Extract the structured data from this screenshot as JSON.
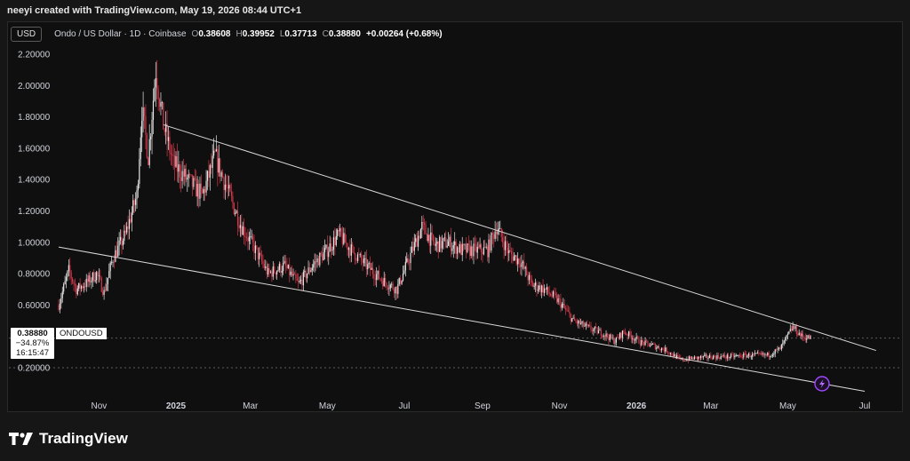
{
  "header": {
    "credit": "neeyi created with TradingView.com, May 19, 2026 08:44 UTC+1"
  },
  "legend": {
    "unit": "USD",
    "symbol_desc": "Ondo / US Dollar · 1D · Coinbase",
    "open_label": "O",
    "open": "0.38608",
    "high_label": "H",
    "high": "0.39952",
    "low_label": "L",
    "low": "0.37713",
    "close_label": "C",
    "close": "0.38880",
    "change": "+0.00264 (+0.68%)"
  },
  "price_box": {
    "price": "0.38880",
    "change_pct": "−34.87%",
    "countdown": "16:15:47",
    "symbol": "ONDOUSD"
  },
  "footer": {
    "brand": "TradingView"
  },
  "colors": {
    "up": "#e6e6e6",
    "down": "#d0394b",
    "background": "#0f0f0f",
    "grid": "#2a2a2a",
    "trendline": "#d9d9d9"
  },
  "icons": {
    "logo": "tradingview-logo-icon",
    "event": "lightning-icon"
  },
  "chart_data": {
    "type": "candlestick",
    "title": "Ondo / US Dollar · 1D · Coinbase",
    "y_ticks": [
      "2.20000",
      "2.00000",
      "1.80000",
      "1.60000",
      "1.40000",
      "1.20000",
      "1.00000",
      "0.80000",
      "0.60000",
      "0.20000"
    ],
    "ylim": [
      0.0,
      2.25
    ],
    "x_ticks": [
      "Nov",
      "2025",
      "Mar",
      "May",
      "Jul",
      "Sep",
      "Nov",
      "2026",
      "Mar",
      "May",
      "Jul"
    ],
    "x_range": [
      "2024-09-30",
      "2026-07-20"
    ],
    "grid": false,
    "path": [
      [
        "2024-09-30",
        0.6
      ],
      [
        "2024-10-08",
        0.82
      ],
      [
        "2024-10-14",
        0.7
      ],
      [
        "2024-10-22",
        0.74
      ],
      [
        "2024-10-30",
        0.8
      ],
      [
        "2024-11-05",
        0.68
      ],
      [
        "2024-11-12",
        0.9
      ],
      [
        "2024-11-22",
        1.05
      ],
      [
        "2024-12-01",
        1.3
      ],
      [
        "2024-12-05",
        1.85
      ],
      [
        "2024-12-10",
        1.55
      ],
      [
        "2024-12-16",
        2.1
      ],
      [
        "2024-12-22",
        1.75
      ],
      [
        "2024-12-30",
        1.5
      ],
      [
        "2025-01-10",
        1.4
      ],
      [
        "2025-01-22",
        1.3
      ],
      [
        "2025-02-01",
        1.55
      ],
      [
        "2025-02-10",
        1.35
      ],
      [
        "2025-02-22",
        1.1
      ],
      [
        "2025-03-05",
        0.95
      ],
      [
        "2025-03-15",
        0.8
      ],
      [
        "2025-03-28",
        0.85
      ],
      [
        "2025-04-08",
        0.73
      ],
      [
        "2025-04-20",
        0.86
      ],
      [
        "2025-05-01",
        0.95
      ],
      [
        "2025-05-10",
        1.05
      ],
      [
        "2025-05-20",
        0.95
      ],
      [
        "2025-06-01",
        0.85
      ],
      [
        "2025-06-15",
        0.75
      ],
      [
        "2025-06-25",
        0.7
      ],
      [
        "2025-07-05",
        0.9
      ],
      [
        "2025-07-15",
        1.1
      ],
      [
        "2025-07-25",
        0.98
      ],
      [
        "2025-08-05",
        1.0
      ],
      [
        "2025-08-15",
        0.95
      ],
      [
        "2025-08-25",
        0.95
      ],
      [
        "2025-09-05",
        0.95
      ],
      [
        "2025-09-12",
        1.1
      ],
      [
        "2025-09-22",
        0.93
      ],
      [
        "2025-10-01",
        0.88
      ],
      [
        "2025-10-10",
        0.73
      ],
      [
        "2025-10-20",
        0.7
      ],
      [
        "2025-11-01",
        0.62
      ],
      [
        "2025-11-12",
        0.5
      ],
      [
        "2025-11-25",
        0.45
      ],
      [
        "2025-12-05",
        0.42
      ],
      [
        "2025-12-15",
        0.37
      ],
      [
        "2025-12-22",
        0.43
      ],
      [
        "2026-01-05",
        0.36
      ],
      [
        "2026-01-15",
        0.34
      ],
      [
        "2026-01-25",
        0.31
      ],
      [
        "2026-02-05",
        0.25
      ],
      [
        "2026-02-15",
        0.26
      ],
      [
        "2026-03-01",
        0.27
      ],
      [
        "2026-03-15",
        0.27
      ],
      [
        "2026-04-01",
        0.28
      ],
      [
        "2026-04-15",
        0.28
      ],
      [
        "2026-04-25",
        0.32
      ],
      [
        "2026-05-05",
        0.46
      ],
      [
        "2026-05-12",
        0.4
      ],
      [
        "2026-05-19",
        0.3888
      ]
    ],
    "trendlines": [
      {
        "points": [
          [
            "2024-12-22",
            1.75
          ],
          [
            "2026-07-10",
            0.31
          ]
        ]
      },
      {
        "points": [
          [
            "2024-09-30",
            0.97
          ],
          [
            "2026-07-01",
            0.05
          ]
        ]
      }
    ],
    "reference_lines": [
      0.3888,
      0.2
    ]
  }
}
